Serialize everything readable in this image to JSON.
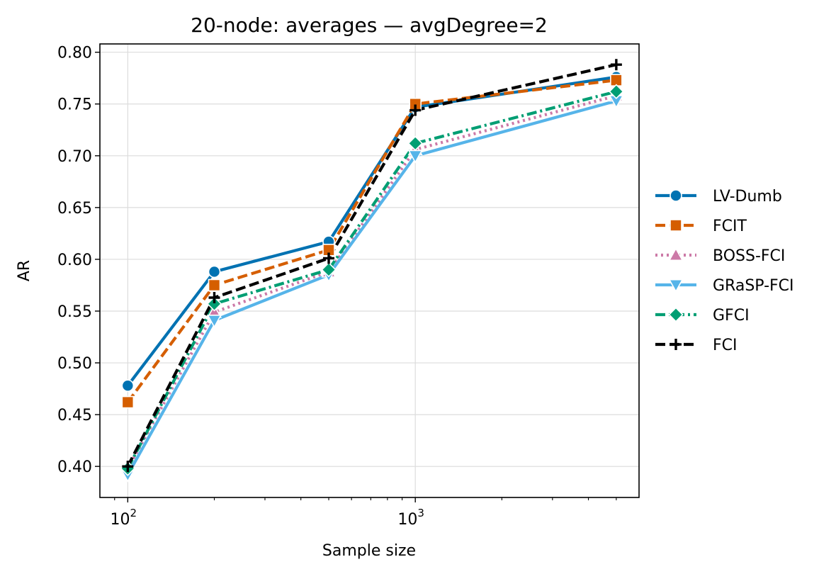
{
  "chart_data": {
    "type": "line",
    "title": "20-node: averages — avgDegree=2",
    "xlabel": "Sample size",
    "ylabel": "AR",
    "xscale": "log",
    "xlim": [
      80,
      6000
    ],
    "ylim": [
      0.37,
      0.808
    ],
    "x": [
      100,
      200,
      500,
      1000,
      5000
    ],
    "xticks": [
      {
        "value": 100,
        "base": "10",
        "exp": "2"
      },
      {
        "value": 1000,
        "base": "10",
        "exp": "3"
      }
    ],
    "yticks": [
      {
        "value": 0.4,
        "label": "0.40"
      },
      {
        "value": 0.45,
        "label": "0.45"
      },
      {
        "value": 0.5,
        "label": "0.50"
      },
      {
        "value": 0.55,
        "label": "0.55"
      },
      {
        "value": 0.6,
        "label": "0.60"
      },
      {
        "value": 0.65,
        "label": "0.65"
      },
      {
        "value": 0.7,
        "label": "0.70"
      },
      {
        "value": 0.75,
        "label": "0.75"
      },
      {
        "value": 0.8,
        "label": "0.80"
      }
    ],
    "grid": true,
    "legend_position": "right",
    "series": [
      {
        "name": "LV-Dumb",
        "color": "#0072b2",
        "dash": "solid",
        "marker": "circle",
        "values": [
          0.478,
          0.588,
          0.617,
          0.747,
          0.776
        ]
      },
      {
        "name": "FCIT",
        "color": "#d55e00",
        "dash": "dashed",
        "marker": "square",
        "values": [
          0.462,
          0.575,
          0.609,
          0.75,
          0.773
        ]
      },
      {
        "name": "BOSS-FCI",
        "color": "#cc79a7",
        "dash": "dotted",
        "marker": "triangle-up",
        "values": [
          0.398,
          0.549,
          0.588,
          0.706,
          0.758
        ]
      },
      {
        "name": "GRaSP-FCI",
        "color": "#56b4e9",
        "dash": "solid",
        "marker": "triangle-down",
        "values": [
          0.392,
          0.541,
          0.585,
          0.7,
          0.753
        ]
      },
      {
        "name": "GFCI",
        "color": "#009e73",
        "dash": "dashdot",
        "marker": "diamond",
        "values": [
          0.398,
          0.557,
          0.59,
          0.712,
          0.762
        ]
      },
      {
        "name": "FCI",
        "color": "#000000",
        "dash": "dashed",
        "marker": "plus",
        "values": [
          0.4,
          0.563,
          0.601,
          0.744,
          0.788
        ]
      }
    ]
  }
}
